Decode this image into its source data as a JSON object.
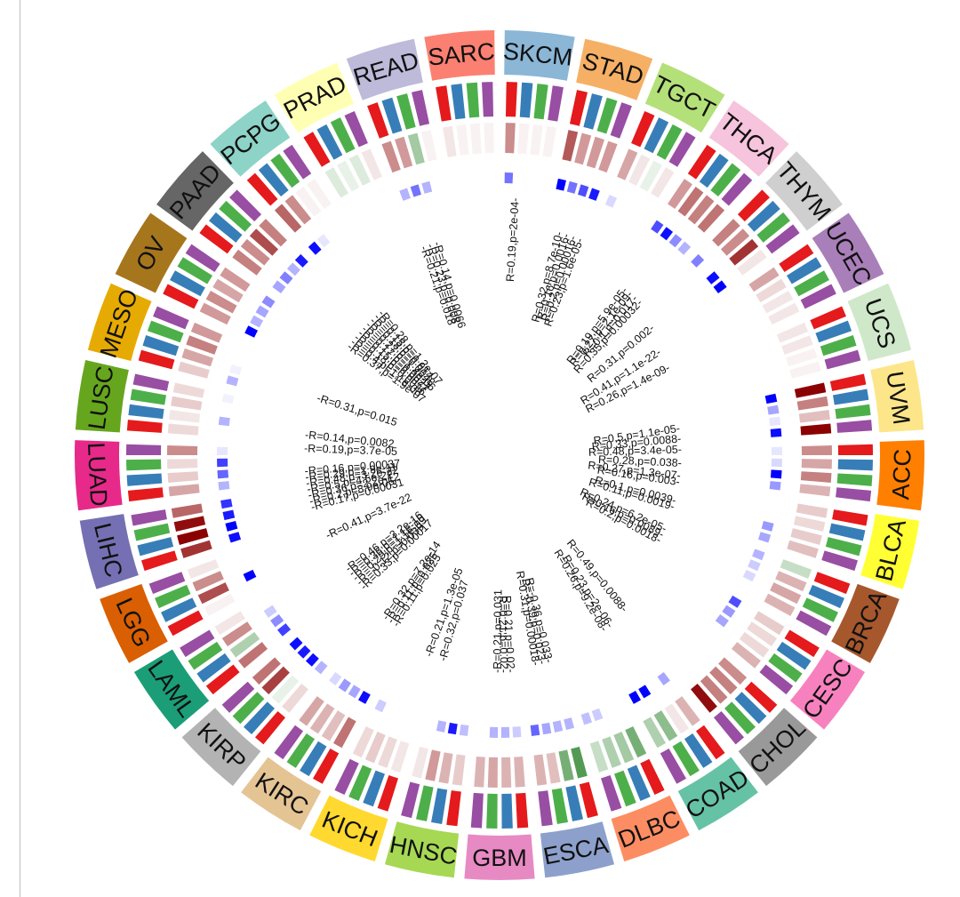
{
  "chart_data": {
    "type": "circular-heatmap",
    "title": "",
    "start_cancer": "SKCM",
    "direction": "clockwise",
    "ring_bar_colors": [
      "#e41a1c",
      "#377eb8",
      "#4daf4a",
      "#984ea3"
    ],
    "heat_color_low": "#ffffff",
    "heat_color_high": "#8b0000",
    "heat_green": "#1a7a1a",
    "sig_color_low": "#ffffff",
    "sig_color_high": "#0000ff",
    "cancers": [
      {
        "name": "SKCM",
        "color": "#8bb6d6",
        "heat": [
          0.45,
          0.05,
          0.05,
          0.05
        ],
        "sig": [
          0.55,
          0,
          0,
          0
        ]
      },
      {
        "name": "STAD",
        "color": "#f5b066",
        "heat": [
          0.65,
          0.4,
          0.4,
          0.4
        ],
        "sig": [
          1.0,
          0.55,
          0.7,
          0.9
        ]
      },
      {
        "name": "TGCT",
        "color": "#b4e07a",
        "heat": [
          0.35,
          0.1,
          -0.1,
          0.1
        ],
        "sig": [
          0.15,
          0,
          0,
          0
        ]
      },
      {
        "name": "THCA",
        "color": "#f6c4dc",
        "heat": [
          0.4,
          0.55,
          0.5,
          0.55
        ],
        "sig": [
          0.7,
          0.95,
          0.45,
          0.3
        ]
      },
      {
        "name": "THYM",
        "color": "#cfcfcf",
        "heat": [
          0.5,
          0.45,
          0.8,
          0.1
        ],
        "sig": [
          0.5,
          0,
          0.95,
          1.0
        ]
      },
      {
        "name": "UCEC",
        "color": "#a97fb9",
        "heat": [
          0.35,
          0.15,
          0.1,
          0.1
        ],
        "sig": [
          0,
          0,
          0,
          0
        ]
      },
      {
        "name": "UCS",
        "color": "#cfe8c9",
        "heat": [
          0.1,
          0.1,
          0.05,
          0.05
        ],
        "sig": [
          0,
          0,
          0,
          0
        ]
      },
      {
        "name": "UVM",
        "color": "#fde68a",
        "heat": [
          1.0,
          0.5,
          0.25,
          1.0
        ],
        "sig": [
          1.0,
          0.35,
          0.1,
          0.95
        ]
      },
      {
        "name": "ACC",
        "color": "#ff7f00",
        "heat": [
          0.45,
          0.35,
          0.5,
          0.3
        ],
        "sig": [
          0.1,
          0.15,
          1.0,
          0.4
        ]
      },
      {
        "name": "BLCA",
        "color": "#ffff33",
        "heat": [
          0.2,
          0.15,
          0.2,
          0.25
        ],
        "sig": [
          0,
          0,
          0.4,
          0.35
        ]
      },
      {
        "name": "BRCA",
        "color": "#a6572c",
        "heat": [
          -0.25,
          0.3,
          0.35,
          0.3
        ],
        "sig": [
          0.3,
          0.2,
          0.15,
          0
        ]
      },
      {
        "name": "CESC",
        "color": "#f781bf",
        "heat": [
          0.2,
          0.15,
          0.15,
          0.3
        ],
        "sig": [
          0.7,
          0.4,
          0.35,
          0
        ]
      },
      {
        "name": "CHOL",
        "color": "#999999",
        "heat": [
          0.45,
          0.5,
          0.5,
          0.95
        ],
        "sig": [
          0,
          0,
          0,
          0
        ]
      },
      {
        "name": "COAD",
        "color": "#66c2a5",
        "heat": [
          0.3,
          0.1,
          -0.5,
          -0.35
        ],
        "sig": [
          0.35,
          0,
          1.0,
          1.0
        ]
      },
      {
        "name": "DLBC",
        "color": "#fc8d62",
        "heat": [
          -0.6,
          -0.4,
          -0.35,
          -0.25
        ],
        "sig": [
          0,
          0,
          0.2,
          0.25
        ]
      },
      {
        "name": "ESCA",
        "color": "#8da0cb",
        "heat": [
          -0.75,
          -0.6,
          0.25,
          0.3
        ],
        "sig": [
          0.3,
          0.3,
          0.35,
          0.6
        ]
      },
      {
        "name": "GBM",
        "color": "#e78ac3",
        "heat": [
          0.3,
          0.3,
          0.35,
          0.3
        ],
        "sig": [
          0.2,
          0.3,
          0.3,
          0
        ]
      },
      {
        "name": "HNSC",
        "color": "#a6d854",
        "heat": [
          0.2,
          0.3,
          0.4,
          0.1
        ],
        "sig": [
          0.25,
          0.9,
          0.3,
          0
        ]
      },
      {
        "name": "KICH",
        "color": "#ffd92f",
        "heat": [
          0.1,
          0.15,
          0.2,
          0.15
        ],
        "sig": [
          0,
          0,
          0,
          0.2
        ]
      },
      {
        "name": "KIRC",
        "color": "#e5c494",
        "heat": [
          0.55,
          0.25,
          0.3,
          0.35
        ],
        "sig": [
          0.95,
          0.35,
          0.4,
          0.15
        ]
      },
      {
        "name": "KIRP",
        "color": "#b3b3b3",
        "heat": [
          0.15,
          -0.1,
          0.75,
          0.55
        ],
        "sig": [
          0.3,
          0.95,
          0.9,
          0.95
        ]
      },
      {
        "name": "LAML",
        "color": "#1b9e77",
        "heat": [
          0.55,
          -0.35,
          0.45,
          0.1
        ],
        "sig": [
          0.75,
          0.45,
          0.2,
          0
        ]
      },
      {
        "name": "LGG",
        "color": "#d95f02",
        "heat": [
          0.05,
          0.7,
          0.45,
          0.1
        ],
        "sig": [
          0,
          1.0,
          0,
          0
        ]
      },
      {
        "name": "LIHC",
        "color": "#7570b3",
        "heat": [
          0.8,
          1.0,
          0.95,
          0.6
        ],
        "sig": [
          0.95,
          1.0,
          0.9,
          0.8
        ]
      },
      {
        "name": "LUAD",
        "color": "#e7298a",
        "heat": [
          0.35,
          0.2,
          0.15,
          0.45
        ],
        "sig": [
          0.3,
          0.6,
          0.75,
          0.1
        ]
      },
      {
        "name": "LUSC",
        "color": "#66a61e",
        "heat": [
          0.15,
          0.1,
          0.2,
          0.15
        ],
        "sig": [
          0,
          0.3,
          0,
          0.05
        ]
      },
      {
        "name": "MESO",
        "color": "#e6ab02",
        "heat": [
          0.2,
          0.35,
          0.5,
          0.4
        ],
        "sig": [
          0.3,
          0.05,
          0,
          0
        ]
      },
      {
        "name": "OV",
        "color": "#a6761d",
        "heat": [
          0.4,
          0.45,
          0.35,
          0.4
        ],
        "sig": [
          1.0,
          0.3,
          0.35,
          0.45
        ]
      },
      {
        "name": "PAAD",
        "color": "#666666",
        "heat": [
          0.5,
          0.45,
          0.7,
          0.5
        ],
        "sig": [
          0.35,
          0.5,
          0.3,
          0.9
        ]
      },
      {
        "name": "PCPG",
        "color": "#8dd3c7",
        "heat": [
          0.6,
          0.45,
          0.05,
          0.05
        ],
        "sig": [
          0.95,
          0.1,
          0,
          0
        ]
      },
      {
        "name": "PRAD",
        "color": "#ffffb3",
        "heat": [
          -0.15,
          -0.1,
          -0.15,
          0.1
        ],
        "sig": [
          0,
          0,
          0,
          0
        ]
      },
      {
        "name": "READ",
        "color": "#bebada",
        "heat": [
          0.45,
          0.4,
          -0.4,
          0.05
        ],
        "sig": [
          0.3,
          0.55,
          0.3,
          0
        ]
      },
      {
        "name": "SARC",
        "color": "#fb8072",
        "heat": [
          0.1,
          0.05,
          0.05,
          0.05
        ],
        "sig": [
          0,
          0,
          0,
          0
        ]
      }
    ],
    "stat_labels": [
      {
        "text": "R=0.19,p=2e-04",
        "angle": 3.5,
        "r": 290
      },
      {
        "text": "R=0.32,p=8.7e-10",
        "angle": 15,
        "r": 260
      },
      {
        "text": "R=0.16,p=0.0016",
        "angle": 16.8,
        "r": 260
      },
      {
        "text": "R=0.2,p=0.00016",
        "angle": 18.6,
        "r": 260
      },
      {
        "text": "R=0.23,p=1.6e-05",
        "angle": 20.4,
        "r": 260
      },
      {
        "text": "R=0.19,p=5.9e-05",
        "angle": 37,
        "r": 235
      },
      {
        "text": "R=0.27,p=2.1e-09",
        "angle": 38.8,
        "r": 235
      },
      {
        "text": "R=0.1,p=0.017",
        "angle": 40.6,
        "r": 235
      },
      {
        "text": "R=0.35,p=0.00032",
        "angle": 42.4,
        "r": 235
      },
      {
        "text": "R=0.31,p=0.002",
        "angle": 50,
        "r": 225
      },
      {
        "text": "R=0.41,p=1.1e-22",
        "angle": 57,
        "r": 215
      },
      {
        "text": "R=0.26,p=1.4e-09",
        "angle": 62.5,
        "r": 215
      },
      {
        "text": "R=0.5,p=1.1e-05",
        "angle": 81.5,
        "r": 205
      },
      {
        "text": "R=0.33,p=0.0088",
        "angle": 84.8,
        "r": 205
      },
      {
        "text": "R=0.48,p=3.4e-05",
        "angle": 88.2,
        "r": 205
      },
      {
        "text": "R=0.28,p=0.038",
        "angle": 92.5,
        "r": 205
      },
      {
        "text": "R=0.27,p=1.3e-07",
        "angle": 96.5,
        "r": 205
      },
      {
        "text": "R=0.16,p=0.003",
        "angle": 98.5,
        "r": 205
      },
      {
        "text": "R=0.1,p=0.0039",
        "angle": 104.5,
        "r": 205
      },
      {
        "text": "R=0.11,p=0.0019",
        "angle": 106.5,
        "r": 205
      },
      {
        "text": "R=0.24,p=6.2e-05",
        "angle": 114,
        "r": 205
      },
      {
        "text": "R=0.16,p=0.0089",
        "angle": 116,
        "r": 205
      },
      {
        "text": "R=0.2,p=0.0018",
        "angle": 118,
        "r": 205
      },
      {
        "text": "R=0.49,p=0.0088",
        "angle": 141,
        "r": 225
      },
      {
        "text": "R=0.23,p=2e-06",
        "angle": 147,
        "r": 230
      },
      {
        "text": "R=0.26,p=9.2e-08",
        "angle": 149,
        "r": 230
      },
      {
        "text": "R=-0.36,p=0.033",
        "angle": 166.5,
        "r": 240
      },
      {
        "text": "R=-0.39,p=0.023",
        "angle": 168.3,
        "r": 240
      },
      {
        "text": "R=0.31,p=0.00018",
        "angle": 170.1,
        "r": 240
      },
      {
        "text": "R=0.21,p=0.02",
        "angle": 177,
        "r": 245
      },
      {
        "text": "R=0.21,p=0.02",
        "angle": 178.8,
        "r": 245
      },
      {
        "text": "R=0.21,p=0.031",
        "angle": 180.6,
        "r": 245
      },
      {
        "text": "R=0.32,p=0.037",
        "angle": 195.5,
        "r": 240
      },
      {
        "text": "R=0.21,p=1.3e-05",
        "angle": 199.5,
        "r": 240
      },
      {
        "text": "R=0.11,p=0.025",
        "angle": 211.5,
        "r": 225
      },
      {
        "text": "R=0.11,p=0.025",
        "angle": 213.3,
        "r": 225
      },
      {
        "text": "R=0.32,p=7.2e-14",
        "angle": 215.1,
        "r": 225
      },
      {
        "text": "R=0.33,p=0.00017",
        "angle": 226,
        "r": 215
      },
      {
        "text": "R=-0.12,p=0.039",
        "angle": 227.8,
        "r": 215
      },
      {
        "text": "R=0.29,p=1.1e-09",
        "angle": 229.6,
        "r": 215
      },
      {
        "text": "R=0.36,p=1.1e-10",
        "angle": 231.4,
        "r": 215
      },
      {
        "text": "R=0.46,p=3.2e-16",
        "angle": 233.2,
        "r": 215
      },
      {
        "text": "R=0.41,p=3.7e-22",
        "angle": 245,
        "r": 215
      },
      {
        "text": "R=0.17,p=0.00031",
        "angle": 254.5,
        "r": 220
      },
      {
        "text": "R=0.2,p=8.9e-05",
        "angle": 256.3,
        "r": 220
      },
      {
        "text": "R=0.36,p=2.2e-12",
        "angle": 258.1,
        "r": 220
      },
      {
        "text": "R=0.5,p=4.5e-22",
        "angle": 259.9,
        "r": 220
      },
      {
        "text": "R=0.48,p=3.2e-22",
        "angle": 261.7,
        "r": 220
      },
      {
        "text": "R=0.29,p=1.9e-11",
        "angle": 263.5,
        "r": 220
      },
      {
        "text": "R=0.16,p=0.00037",
        "angle": 265.3,
        "r": 220
      },
      {
        "text": "R=0.19,p=3.7e-05",
        "angle": 272,
        "r": 220
      },
      {
        "text": "R=0.14,p=0.0082",
        "angle": 276,
        "r": 220
      },
      {
        "text": "R=0.31,p=0.015",
        "angle": 287.5,
        "r": 215
      },
      {
        "text": "R=0.37,p=1.9e-07",
        "angle": 306,
        "r": 210
      },
      {
        "text": "R=0.4,p=1.1e-08",
        "angle": 307.8,
        "r": 210
      },
      {
        "text": "R=0.18,p=0.0026",
        "angle": 309.6,
        "r": 210
      },
      {
        "text": "R=0.15,p=0.0077",
        "angle": 311.4,
        "r": 210
      },
      {
        "text": "R=0.17,p=0.0027",
        "angle": 313.2,
        "r": 210
      },
      {
        "text": "R=0.27,p=1.4e-06",
        "angle": 315,
        "r": 210
      },
      {
        "text": "R=0.18,p=0.0048",
        "angle": 316.8,
        "r": 210
      },
      {
        "text": "R=0.15,p=0.014",
        "angle": 318.6,
        "r": 210
      },
      {
        "text": "R=0.28,p=1.2e-07",
        "angle": 320.4,
        "r": 210
      },
      {
        "text": "R=0.21,p=0.018",
        "angle": 340,
        "r": 250
      },
      {
        "text": "R=0.23,p=0.008",
        "angle": 341.8,
        "r": 250
      },
      {
        "text": "R=0.14,p=0.0066",
        "angle": 343.6,
        "r": 250
      }
    ]
  }
}
